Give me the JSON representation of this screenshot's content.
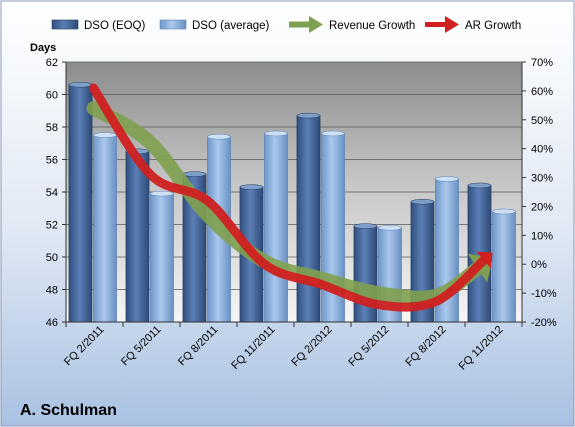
{
  "chart_data": {
    "type": "bar",
    "title": "A. Schulman",
    "categories": [
      "FQ 2/2011",
      "FQ 5/2011",
      "FQ 8/2011",
      "FQ 11/2011",
      "FQ 2/2012",
      "FQ 5/2012",
      "FQ 8/2012",
      "FQ 11/2012"
    ],
    "ylabel": "Days",
    "ylim": [
      46,
      62
    ],
    "yticks": [
      46,
      48,
      50,
      52,
      54,
      56,
      58,
      60,
      62
    ],
    "y2lim": [
      -20,
      70
    ],
    "y2ticks": [
      "-20%",
      "-10%",
      "0%",
      "10%",
      "20%",
      "30%",
      "40%",
      "50%",
      "60%",
      "70%"
    ],
    "grid": true,
    "legend_position": "top",
    "series": [
      {
        "name": "DSO (EOQ)",
        "kind": "bar",
        "axis": "left",
        "color": "#4a6b9c",
        "values": [
          60.6,
          56.5,
          55.1,
          54.3,
          58.7,
          51.9,
          53.4,
          54.4
        ]
      },
      {
        "name": "DSO (average)",
        "kind": "bar",
        "axis": "left",
        "color": "#8bb1dc",
        "values": [
          57.5,
          53.9,
          57.4,
          57.6,
          57.6,
          51.8,
          54.8,
          52.8
        ]
      },
      {
        "name": "Revenue Growth",
        "kind": "arrow",
        "axis": "right",
        "color": "#7fa04f",
        "values": [
          54,
          42,
          17,
          1,
          -5,
          -10,
          -11,
          2
        ]
      },
      {
        "name": "AR Growth",
        "kind": "arrow",
        "axis": "right",
        "color": "#d02020",
        "values": [
          61,
          31,
          22,
          0,
          -7,
          -14,
          -13,
          4
        ]
      }
    ]
  }
}
